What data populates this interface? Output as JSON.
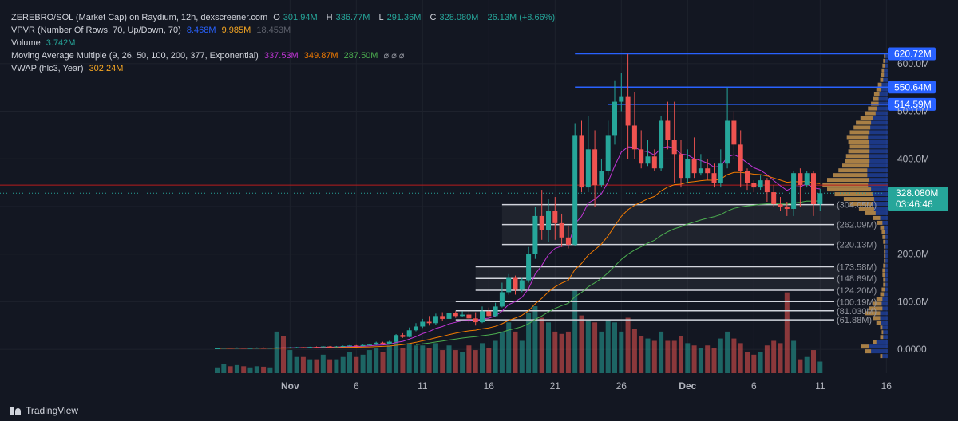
{
  "legend": {
    "symbol": "ZEREBRO/SOL (Market Cap) on Raydium, 12h, dexscreener.com",
    "ohlc": {
      "o_label": "O",
      "o": "301.94M",
      "h_label": "H",
      "h": "336.77M",
      "l_label": "L",
      "l": "291.36M",
      "c_label": "C",
      "c": "328.080M",
      "chg": "26.13M (+8.66%)"
    },
    "vpvr": {
      "label": "VPVR (Number Of Rows, 70, Up/Down, 70)",
      "v1": "8.468M",
      "v2": "9.985M",
      "v3": "18.453M"
    },
    "volume": {
      "label": "Volume",
      "value": "3.742M"
    },
    "mam": {
      "label": "Moving Average Multiple (9, 26, 50, 100, 200, 377, Exponential)",
      "v1": "337.53M",
      "v2": "349.87M",
      "v3": "287.50M",
      "rest": "⌀ ⌀ ⌀"
    },
    "vwap": {
      "label": "VWAP (hlc3, Year)",
      "value": "302.24M"
    }
  },
  "colors": {
    "up": "#26a69a",
    "down": "#ef5350",
    "accent": "#2962ff",
    "ma9": "#c135d6",
    "ma26": "#f57c00",
    "ma50": "#4caf50",
    "vwap": "#f5a623"
  },
  "branding": "TradingView",
  "chart_data": {
    "type": "candlestick",
    "timeframe": "12h",
    "y_unit": "market cap (USD)",
    "ylim": [
      -50,
      660
    ],
    "y_ticks": [
      {
        "v": 0,
        "t": "0.0000"
      },
      {
        "v": 100,
        "t": "100.0M"
      },
      {
        "v": 200,
        "t": "200.0M"
      },
      {
        "v": 300,
        "t": ""
      },
      {
        "v": 400,
        "t": "400.0M"
      },
      {
        "v": 500,
        "t": "500.0M"
      },
      {
        "v": 600,
        "t": "600.0M"
      }
    ],
    "x_ticks": [
      {
        "i": 11,
        "t": "Nov"
      },
      {
        "i": 21,
        "t": "6"
      },
      {
        "i": 31,
        "t": "11"
      },
      {
        "i": 41,
        "t": "16"
      },
      {
        "i": 51,
        "t": "21"
      },
      {
        "i": 61,
        "t": "26"
      },
      {
        "i": 71,
        "t": "Dec"
      },
      {
        "i": 81,
        "t": "6"
      },
      {
        "i": 91,
        "t": "11"
      },
      {
        "i": 101,
        "t": "16"
      }
    ],
    "candles": [
      [
        2,
        2,
        1.5,
        2.5,
        0.25
      ],
      [
        2,
        3,
        1.5,
        3.5,
        0.4
      ],
      [
        3,
        2.5,
        2,
        3.5,
        0.3
      ],
      [
        2.5,
        3,
        2,
        4,
        0.35
      ],
      [
        3,
        2.5,
        2,
        3.5,
        0.3
      ],
      [
        2.5,
        2.5,
        2,
        3.5,
        0.25
      ],
      [
        2.5,
        3,
        2,
        4,
        0.3
      ],
      [
        3,
        2.5,
        2,
        4,
        0.28
      ],
      [
        2.5,
        3,
        2,
        3.5,
        0.25
      ],
      [
        3,
        4,
        2.5,
        4.5,
        1.8
      ],
      [
        4,
        3,
        2.5,
        4.5,
        1.6
      ],
      [
        3,
        4,
        2.5,
        5,
        1
      ],
      [
        4,
        4.5,
        3.5,
        5,
        0.7
      ],
      [
        4.5,
        4,
        3.5,
        5,
        0.7
      ],
      [
        4,
        5,
        3.5,
        5.5,
        0.6
      ],
      [
        5,
        4.5,
        4,
        6,
        0.6
      ],
      [
        4.5,
        6,
        4,
        7,
        0.8
      ],
      [
        6,
        5,
        4.5,
        7,
        0.6
      ],
      [
        5,
        6,
        4.5,
        7,
        0.6
      ],
      [
        6,
        7,
        5.5,
        8,
        0.7
      ],
      [
        7,
        8,
        6.5,
        9,
        0.9
      ],
      [
        8,
        7,
        6.5,
        9,
        0.7
      ],
      [
        7,
        9,
        6.5,
        10,
        0.8
      ],
      [
        9,
        10,
        8,
        11,
        1
      ],
      [
        10,
        14,
        9,
        16,
        1.1
      ],
      [
        14,
        12,
        11,
        16,
        0.9
      ],
      [
        12,
        16,
        11,
        18,
        1.2
      ],
      [
        16,
        30,
        15,
        32,
        1.6
      ],
      [
        30,
        26,
        24,
        34,
        1.1
      ],
      [
        26,
        40,
        25,
        46,
        1.3
      ],
      [
        40,
        48,
        38,
        55,
        1.2
      ],
      [
        48,
        58,
        45,
        64,
        1.2
      ],
      [
        58,
        55,
        50,
        70,
        1.1
      ],
      [
        55,
        70,
        52,
        75,
        1.3
      ],
      [
        70,
        64,
        60,
        78,
        1
      ],
      [
        64,
        76,
        62,
        80,
        1.2
      ],
      [
        76,
        70,
        66,
        80,
        1
      ],
      [
        70,
        73,
        68,
        80,
        0.9
      ],
      [
        73,
        65,
        55,
        80,
        1.2
      ],
      [
        65,
        57,
        50,
        78,
        1
      ],
      [
        57,
        80,
        55,
        90,
        1.3
      ],
      [
        80,
        70,
        65,
        88,
        1.1
      ],
      [
        70,
        90,
        68,
        98,
        1.4
      ],
      [
        90,
        120,
        88,
        140,
        1.8
      ],
      [
        120,
        150,
        115,
        158,
        2.2
      ],
      [
        150,
        125,
        115,
        155,
        1.8
      ],
      [
        125,
        145,
        120,
        150,
        1.4
      ],
      [
        145,
        200,
        140,
        215,
        2.6
      ],
      [
        200,
        280,
        190,
        300,
        2.9
      ],
      [
        280,
        250,
        230,
        335,
        2.4
      ],
      [
        250,
        290,
        225,
        315,
        2.2
      ],
      [
        290,
        265,
        230,
        320,
        1.8
      ],
      [
        265,
        235,
        215,
        285,
        1.7
      ],
      [
        235,
        220,
        212,
        260,
        1.8
      ],
      [
        220,
        450,
        218,
        475,
        3.6
      ],
      [
        450,
        340,
        330,
        480,
        2.5
      ],
      [
        340,
        420,
        330,
        490,
        2.3
      ],
      [
        420,
        345,
        300,
        460,
        2.2
      ],
      [
        345,
        375,
        340,
        400,
        1.8
      ],
      [
        375,
        450,
        365,
        480,
        2.3
      ],
      [
        450,
        520,
        430,
        565,
        2.2
      ],
      [
        520,
        530,
        500,
        580,
        1.8
      ],
      [
        530,
        470,
        400,
        620,
        2.4
      ],
      [
        470,
        420,
        400,
        540,
        1.9
      ],
      [
        420,
        390,
        380,
        460,
        1.6
      ],
      [
        390,
        405,
        385,
        440,
        1.5
      ],
      [
        405,
        380,
        375,
        420,
        1.4
      ],
      [
        380,
        480,
        375,
        490,
        1.8
      ],
      [
        480,
        440,
        420,
        520,
        1.4
      ],
      [
        440,
        410,
        350,
        520,
        1.4
      ],
      [
        410,
        360,
        340,
        440,
        1.6
      ],
      [
        360,
        400,
        350,
        420,
        1.3
      ],
      [
        400,
        370,
        360,
        445,
        1.2
      ],
      [
        370,
        380,
        365,
        410,
        1.1
      ],
      [
        380,
        370,
        355,
        400,
        1.2
      ],
      [
        370,
        350,
        340,
        390,
        1.1
      ],
      [
        350,
        390,
        340,
        420,
        1.5
      ],
      [
        390,
        480,
        380,
        550,
        1.8
      ],
      [
        480,
        430,
        400,
        500,
        1.5
      ],
      [
        430,
        375,
        340,
        460,
        1.3
      ],
      [
        375,
        350,
        335,
        380,
        0.9
      ],
      [
        350,
        340,
        330,
        355,
        0.8
      ],
      [
        340,
        355,
        335,
        365,
        0.9
      ],
      [
        355,
        330,
        310,
        360,
        1.2
      ],
      [
        330,
        305,
        300,
        345,
        1.4
      ],
      [
        305,
        300,
        290,
        320,
        1.3
      ],
      [
        300,
        295,
        280,
        310,
        3.5
      ],
      [
        295,
        370,
        280,
        375,
        1.4
      ],
      [
        370,
        345,
        300,
        380,
        0.6
      ],
      [
        345,
        370,
        340,
        375,
        0.7
      ],
      [
        370,
        305,
        280,
        375,
        1
      ],
      [
        305,
        328,
        291,
        337,
        0.5
      ]
    ],
    "hlines": [
      {
        "v": 620.72,
        "label": "620.72M",
        "from": 54
      },
      {
        "v": 550.64,
        "label": "550.64M",
        "from": 54
      },
      {
        "v": 514.59,
        "label": "514.59M",
        "from": 59
      },
      {
        "v": 304.05,
        "label": "(304.05M)",
        "from": 43
      },
      {
        "v": 262.09,
        "label": "(262.09M)",
        "from": 43
      },
      {
        "v": 220.13,
        "label": "(220.13M)",
        "from": 43
      },
      {
        "v": 173.58,
        "label": "(173.58M)",
        "from": 39
      },
      {
        "v": 148.89,
        "label": "(148.89M)",
        "from": 39
      },
      {
        "v": 124.2,
        "label": "(124.20M)",
        "from": 39
      },
      {
        "v": 100.19,
        "label": "(100.19M)",
        "from": 36
      },
      {
        "v": 81.03,
        "label": "(81.030M)",
        "from": 36
      },
      {
        "v": 61.88,
        "label": "(61.88M)",
        "from": 36
      }
    ],
    "current_price": {
      "v": 328.08,
      "label": "328.080M",
      "countdown": "03:46:46"
    },
    "red_line": 345,
    "vpvr_profile": [
      [
        -20,
        0.03,
        0.1
      ],
      [
        -10,
        0.08,
        0.3
      ],
      [
        0,
        0.1,
        0.35
      ],
      [
        10,
        0.05,
        0.2
      ],
      [
        20,
        0.04,
        0.1
      ],
      [
        30,
        0.02,
        0.08
      ],
      [
        40,
        0.03,
        0.1
      ],
      [
        50,
        0.06,
        0.15
      ],
      [
        60,
        0.1,
        0.2
      ],
      [
        70,
        0.2,
        0.3
      ],
      [
        80,
        0.18,
        0.25
      ],
      [
        90,
        0.12,
        0.2
      ],
      [
        100,
        0.08,
        0.15
      ],
      [
        110,
        0.05,
        0.1
      ],
      [
        120,
        0.04,
        0.08
      ],
      [
        130,
        0.03,
        0.06
      ],
      [
        140,
        0.03,
        0.06
      ],
      [
        150,
        0.03,
        0.07
      ],
      [
        160,
        0.03,
        0.07
      ],
      [
        170,
        0.03,
        0.06
      ],
      [
        180,
        0.02,
        0.05
      ],
      [
        190,
        0.02,
        0.05
      ],
      [
        200,
        0.02,
        0.05
      ],
      [
        210,
        0.02,
        0.05
      ],
      [
        220,
        0.03,
        0.06
      ],
      [
        230,
        0.04,
        0.07
      ],
      [
        240,
        0.04,
        0.08
      ],
      [
        250,
        0.05,
        0.1
      ],
      [
        260,
        0.07,
        0.14
      ],
      [
        270,
        0.1,
        0.2
      ],
      [
        280,
        0.14,
        0.3
      ],
      [
        290,
        0.2,
        0.38
      ],
      [
        300,
        0.3,
        0.5
      ],
      [
        310,
        0.4,
        0.58
      ],
      [
        320,
        0.5,
        0.7
      ],
      [
        330,
        0.58,
        0.8
      ],
      [
        340,
        0.6,
        0.86
      ],
      [
        350,
        0.55,
        0.8
      ],
      [
        360,
        0.45,
        0.72
      ],
      [
        370,
        0.38,
        0.65
      ],
      [
        380,
        0.35,
        0.6
      ],
      [
        390,
        0.32,
        0.56
      ],
      [
        400,
        0.3,
        0.55
      ],
      [
        410,
        0.28,
        0.52
      ],
      [
        420,
        0.26,
        0.5
      ],
      [
        430,
        0.27,
        0.52
      ],
      [
        440,
        0.28,
        0.54
      ],
      [
        450,
        0.26,
        0.5
      ],
      [
        460,
        0.22,
        0.45
      ],
      [
        470,
        0.2,
        0.42
      ],
      [
        480,
        0.16,
        0.36
      ],
      [
        490,
        0.14,
        0.3
      ],
      [
        500,
        0.12,
        0.26
      ],
      [
        510,
        0.1,
        0.22
      ],
      [
        520,
        0.08,
        0.2
      ],
      [
        530,
        0.07,
        0.18
      ],
      [
        540,
        0.06,
        0.15
      ],
      [
        550,
        0.05,
        0.13
      ],
      [
        560,
        0.04,
        0.1
      ],
      [
        570,
        0.04,
        0.09
      ],
      [
        580,
        0.03,
        0.08
      ],
      [
        590,
        0.03,
        0.07
      ],
      [
        600,
        0.02,
        0.06
      ],
      [
        610,
        0.02,
        0.05
      ]
    ]
  }
}
